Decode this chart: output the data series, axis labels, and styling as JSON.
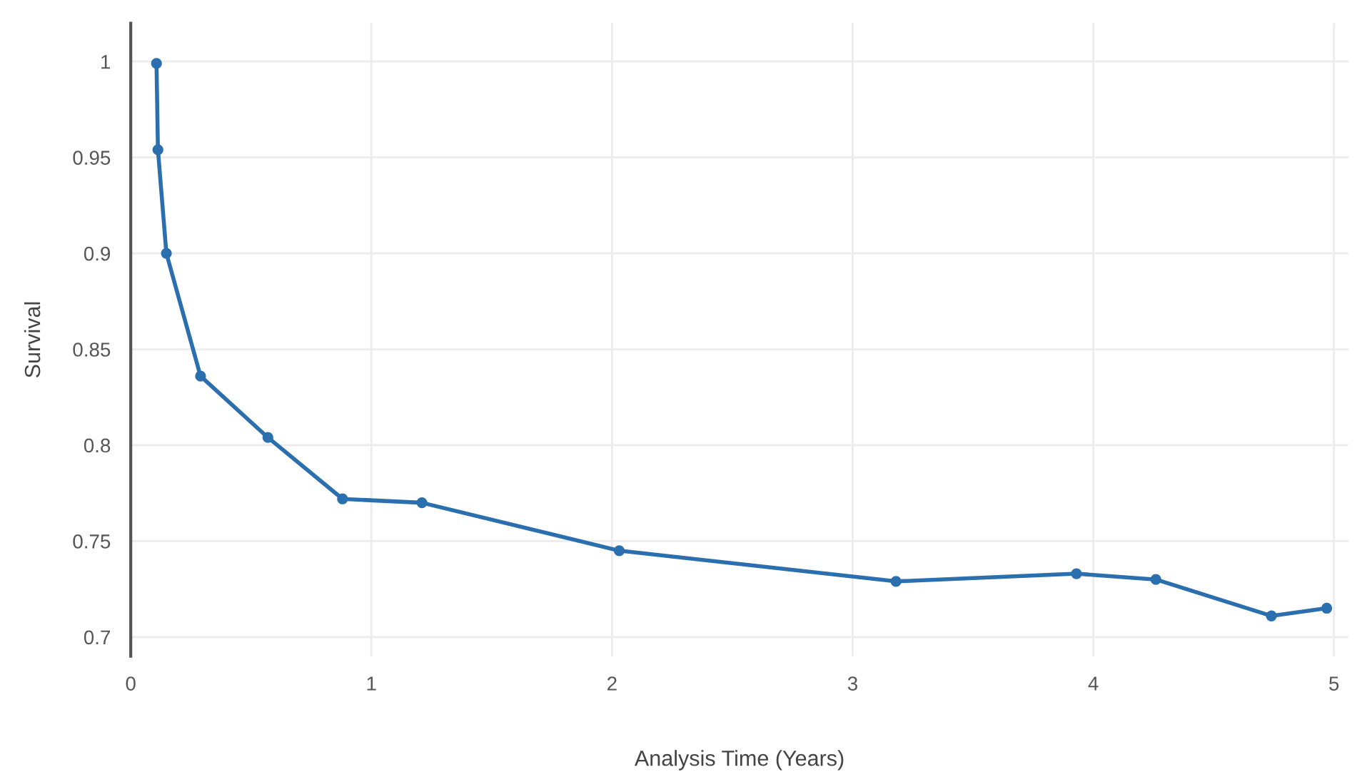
{
  "chart_data": {
    "type": "line",
    "xlabel": "Analysis Time (Years)",
    "ylabel": "Survival",
    "series": [
      {
        "color": "#2b6fae",
        "x": [
          0.107,
          0.113,
          0.148,
          0.29,
          0.57,
          0.88,
          1.21,
          2.03,
          3.18,
          3.93,
          4.26,
          4.74,
          4.97
        ],
        "values": [
          0.999,
          0.954,
          0.9,
          0.836,
          0.804,
          0.772,
          0.77,
          0.745,
          0.729,
          0.733,
          0.73,
          0.711,
          0.715
        ]
      }
    ],
    "xlim": [
      0,
      5.06
    ],
    "ylim": [
      0.69,
      1.02
    ],
    "xticks": [
      0,
      1,
      2,
      3,
      4,
      5
    ],
    "yticks": [
      0.7,
      0.75,
      0.8,
      0.85,
      0.9,
      0.95,
      1
    ],
    "grid": true,
    "marker": "circle",
    "line_style": "solid"
  }
}
